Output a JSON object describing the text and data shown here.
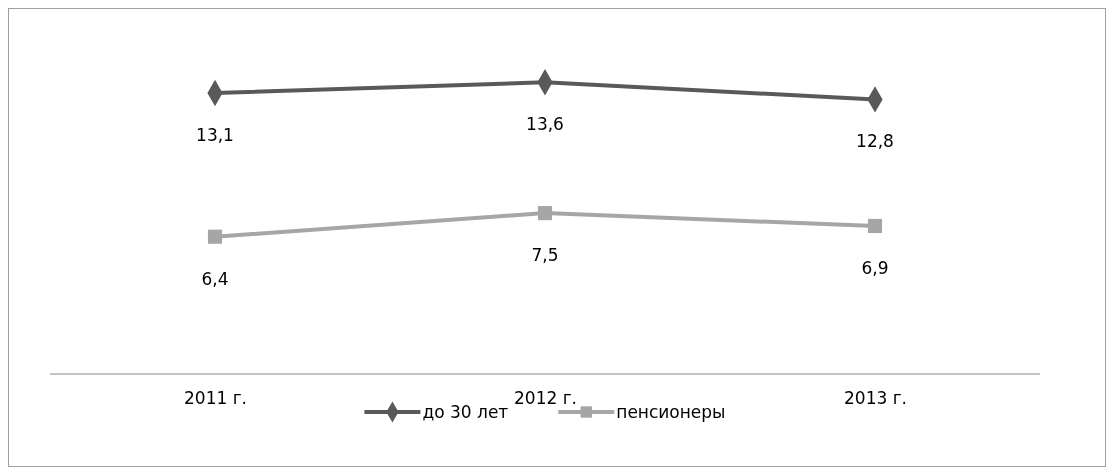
{
  "chart_data": {
    "type": "line",
    "categories": [
      "2011 г.",
      "2012 г.",
      "2013 г."
    ],
    "series": [
      {
        "name": "до 30 лет",
        "color": "#595959",
        "marker": "diamond",
        "values": [
          13.1,
          13.6,
          12.8
        ],
        "value_labels": [
          "13,1",
          "13,6",
          "12,8"
        ]
      },
      {
        "name": "пенсионеры",
        "color": "#a6a6a6",
        "marker": "square",
        "values": [
          6.4,
          7.5,
          6.9
        ],
        "value_labels": [
          "6,4",
          "7,5",
          "6,9"
        ]
      }
    ],
    "legend": "bottom",
    "grid": false,
    "tick_labels": "x"
  }
}
